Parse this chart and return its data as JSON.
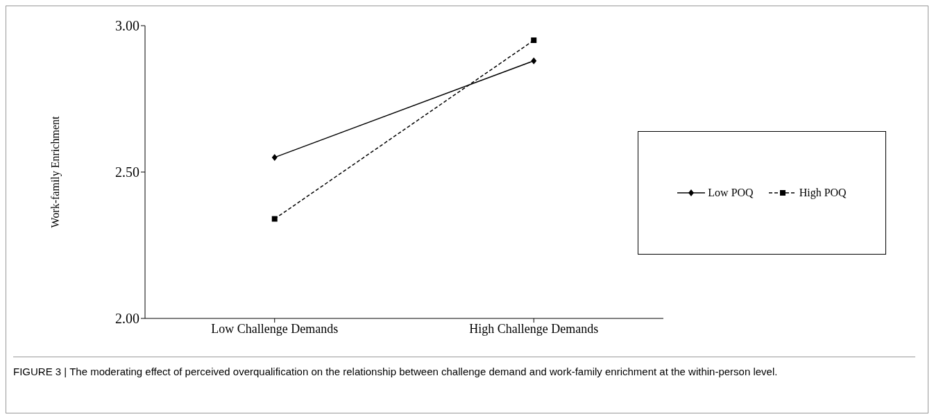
{
  "chart_data": {
    "type": "line",
    "ylabel": "Work-family Enrichment",
    "categories": [
      "Low Challenge Demands",
      "High Challenge Demands"
    ],
    "series": [
      {
        "name": "Low POQ",
        "color": "#000000",
        "values": [
          2.55,
          2.88
        ],
        "marker": "diamond",
        "line_style": "solid"
      },
      {
        "name": "High POQ",
        "color": "#000000",
        "values": [
          2.34,
          2.95
        ],
        "marker": "square",
        "line_style": "dashed"
      }
    ],
    "ylim": [
      2,
      3
    ],
    "yticks": [
      {
        "value": 2,
        "label": "2.00"
      },
      {
        "value": 2.5,
        "label": "2.50"
      },
      {
        "value": 3,
        "label": "3.00"
      }
    ],
    "grid": false,
    "legend": "right",
    "annotations": [
      "FIGURE 3 | The moderating effect of perceived overqualification on the relationship between challenge demand and work-family enrichment at the within-person level."
    ]
  }
}
